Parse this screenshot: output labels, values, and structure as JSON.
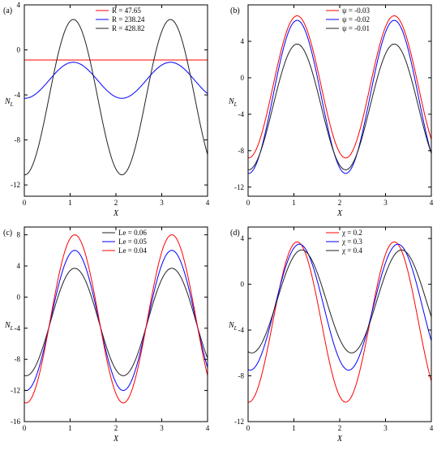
{
  "chart_data": [
    {
      "panel_label": "(a)",
      "type": "line",
      "xlabel": "X",
      "ylabel_main": "N",
      "ylabel_sub": "L",
      "xlim": [
        0,
        4
      ],
      "ylim": [
        -13,
        4
      ],
      "x_ticks": [
        0,
        1,
        2,
        3,
        4
      ],
      "y_ticks": [
        4,
        0,
        -4,
        -8,
        -12
      ],
      "legend_position": "top-center",
      "series_params": [
        {
          "name": "R = 47.65",
          "color": "#ff0000",
          "mean": -0.9,
          "amp": 0.0,
          "phase": 1.07,
          "period": 2.12
        },
        {
          "name": "R = 238.24",
          "color": "#0000ff",
          "mean": -2.7,
          "amp": 1.6,
          "phase": 1.07,
          "period": 2.12
        },
        {
          "name": "R = 428.82",
          "color": "#222222",
          "mean": -4.2,
          "amp": 6.9,
          "phase": 1.07,
          "period": 2.12
        }
      ]
    },
    {
      "panel_label": "(b)",
      "type": "line",
      "xlabel": "X",
      "ylabel_main": "N",
      "ylabel_sub": "L",
      "xlim": [
        0,
        4
      ],
      "ylim": [
        -13,
        8
      ],
      "x_ticks": [
        0,
        1,
        2,
        3,
        4
      ],
      "y_ticks": [
        4,
        0,
        -4,
        -8,
        -12
      ],
      "legend_position": "top-center",
      "series_params": [
        {
          "name": "ψ = -0.03",
          "color": "#ff0000",
          "mean": -1.0,
          "amp": 7.8,
          "phase": 1.07,
          "period": 2.12
        },
        {
          "name": "ψ = -0.02",
          "color": "#0000ff",
          "mean": -2.1,
          "amp": 8.4,
          "phase": 1.07,
          "period": 2.12
        },
        {
          "name": "ψ = -0.01",
          "color": "#222222",
          "mean": -3.2,
          "amp": 6.9,
          "phase": 1.07,
          "period": 2.12
        }
      ]
    },
    {
      "panel_label": "(c)",
      "type": "line",
      "xlabel": "X",
      "ylabel_main": "N",
      "ylabel_sub": "L",
      "xlim": [
        0,
        4
      ],
      "ylim": [
        -16,
        9
      ],
      "x_ticks": [
        0,
        1,
        2,
        3,
        4
      ],
      "y_ticks": [
        8,
        4,
        0,
        -4,
        -8,
        -12,
        -16
      ],
      "legend_position": "top-center",
      "series_params": [
        {
          "name": "Le = 0.06",
          "color": "#222222",
          "mean": -3.2,
          "amp": 6.9,
          "phase": 1.1,
          "period": 2.12
        },
        {
          "name": "Le = 0.05",
          "color": "#0000ff",
          "mean": -3.0,
          "amp": 9.0,
          "phase": 1.1,
          "period": 2.12
        },
        {
          "name": "Le = 0.04",
          "color": "#ff0000",
          "mean": -2.8,
          "amp": 10.8,
          "phase": 1.1,
          "period": 2.12
        }
      ]
    },
    {
      "panel_label": "(d)",
      "type": "line",
      "xlabel": "X",
      "ylabel_main": "N",
      "ylabel_sub": "L",
      "xlim": [
        0,
        4
      ],
      "ylim": [
        -12,
        5
      ],
      "x_ticks": [
        0,
        1,
        2,
        3,
        4
      ],
      "y_ticks": [
        4,
        0,
        -4,
        -8,
        -12
      ],
      "legend_position": "top-center",
      "series_params": [
        {
          "name": "χ = 0.2",
          "color": "#ff0000",
          "mean": -3.3,
          "amp": 7.0,
          "phase": 1.07,
          "period": 2.12
        },
        {
          "name": "χ = 0.3",
          "color": "#0000ff",
          "mean": -2.0,
          "amp": 5.5,
          "phase": 1.12,
          "period": 2.15
        },
        {
          "name": "χ = 0.4",
          "color": "#222222",
          "mean": -1.5,
          "amp": 4.5,
          "phase": 1.17,
          "period": 2.18
        }
      ]
    }
  ]
}
